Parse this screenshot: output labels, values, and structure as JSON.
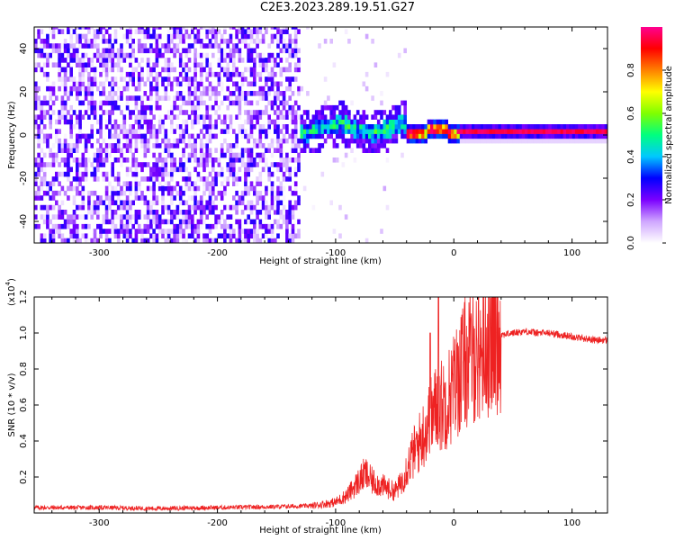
{
  "title": "C2E3.2023.289.19.51.G27",
  "chart_data": [
    {
      "type": "heatmap",
      "xlabel": "Height of straight line (km)",
      "ylabel": "Frequency (Hz)",
      "xlim": [
        -355,
        130
      ],
      "ylim": [
        -50,
        50
      ],
      "xticks": [
        -300,
        -200,
        -100,
        0,
        100
      ],
      "xtick_labels": [
        "-300",
        "-200",
        "-100",
        "0",
        "100"
      ],
      "yticks": [
        -40,
        -20,
        0,
        20,
        40
      ],
      "ytick_labels": [
        "-40",
        "-20",
        "0",
        "20",
        "40"
      ],
      "colorbar": {
        "label": "Normalized spectral amplitude",
        "range": [
          0,
          1
        ],
        "ticks": [
          0.0,
          0.2,
          0.4,
          0.6,
          0.8
        ],
        "tick_labels": [
          "0.0",
          "0.2",
          "0.4",
          "0.6",
          "0.8"
        ],
        "colormap": [
          "#ffffff",
          "#cfa6ff",
          "#7b00ff",
          "#0000ff",
          "#00c8ff",
          "#00ff7f",
          "#7fff00",
          "#ffff00",
          "#ff8000",
          "#ff0000",
          "#ff0090"
        ]
      },
      "regions": [
        {
          "x": [
            -355,
            -130
          ],
          "freq_spread_hz": 50,
          "amplitude": "0.05-0.25 (noise)"
        },
        {
          "x": [
            -130,
            -40
          ],
          "center_freq_hz": 2,
          "freq_spread_hz": 8,
          "amplitude": "0.3-0.6"
        },
        {
          "x": [
            -40,
            5
          ],
          "center_freq_hz": 1,
          "freq_spread_hz": 3,
          "amplitude": "0.6-1.0"
        },
        {
          "x": [
            5,
            130
          ],
          "center_freq_hz": 0,
          "freq_spread_hz": 2,
          "amplitude": "0.9-1.0"
        }
      ],
      "grid": false
    },
    {
      "type": "line",
      "xlabel": "Height of straight line (km)",
      "ylabel": "SNR (10 * v/v)",
      "yscale_label": "(x10",
      "yscale_exp": "4",
      "yscale_close": ")",
      "xlim": [
        -355,
        130
      ],
      "ylim": [
        0,
        1.2
      ],
      "xticks": [
        -300,
        -200,
        -100,
        0,
        100
      ],
      "xtick_labels": [
        "-300",
        "-200",
        "-100",
        "0",
        "100"
      ],
      "yticks": [
        0.2,
        0.4,
        0.6,
        0.8,
        1.0,
        1.2
      ],
      "ytick_labels": [
        "0.2",
        "0.4",
        "0.6",
        "0.8",
        "1.0",
        "1.2"
      ],
      "series": [
        {
          "color": "#ee2222",
          "x": [
            -355,
            -300,
            -250,
            -200,
            -150,
            -120,
            -110,
            -100,
            -90,
            -80,
            -75,
            -70,
            -60,
            -50,
            -45,
            -40,
            -35,
            -30,
            -25,
            -20,
            -15,
            -10,
            -5,
            0,
            5,
            10,
            20,
            30,
            40,
            50,
            60,
            70,
            80,
            90,
            100,
            110,
            120,
            130
          ],
          "y": [
            0.03,
            0.03,
            0.025,
            0.03,
            0.035,
            0.04,
            0.05,
            0.06,
            0.1,
            0.18,
            0.22,
            0.18,
            0.15,
            0.12,
            0.16,
            0.25,
            0.32,
            0.38,
            0.45,
            0.52,
            0.58,
            0.6,
            0.64,
            0.7,
            0.78,
            0.84,
            0.9,
            0.95,
            0.99,
            1.0,
            1.01,
            1.0,
            1.0,
            0.99,
            0.98,
            0.97,
            0.96,
            0.96
          ]
        }
      ],
      "peaks": [
        {
          "x": -13,
          "y": 1.2
        },
        {
          "x": -20,
          "y": 1.0
        }
      ],
      "grid": false
    }
  ]
}
